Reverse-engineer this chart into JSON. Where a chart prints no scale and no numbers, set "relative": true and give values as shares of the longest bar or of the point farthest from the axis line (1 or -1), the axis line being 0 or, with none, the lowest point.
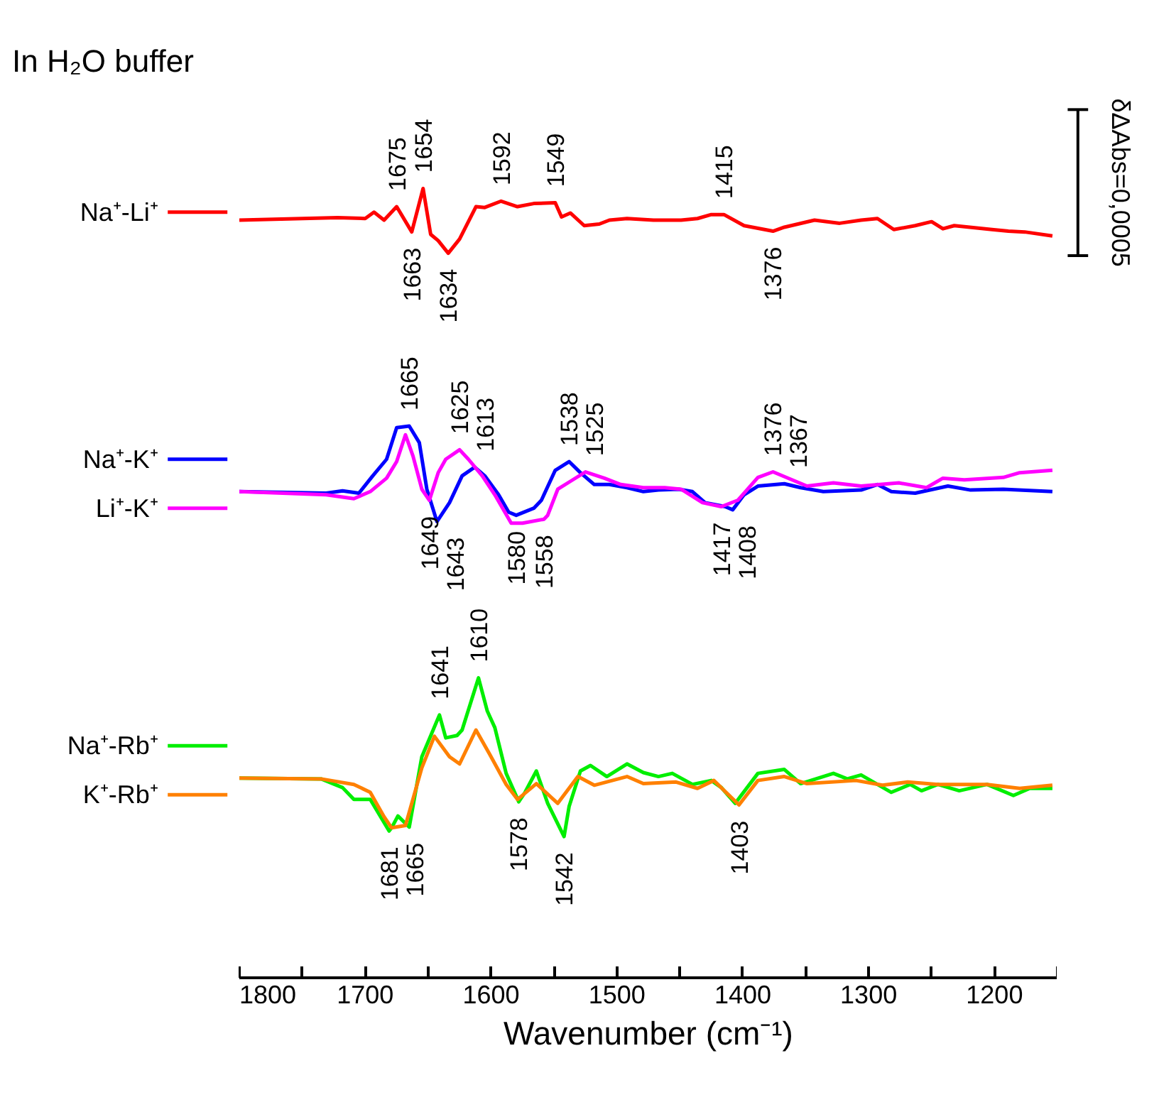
{
  "chart_data": {
    "type": "line",
    "title": "In H₂O buffer",
    "xlabel": "Wavenumber (cm⁻¹)",
    "relative": true,
    "legend": "left",
    "grid": false,
    "xlim": [
      1800,
      1150
    ],
    "xticks": [
      1800,
      {
        "value": 1750,
        "label": null
      },
      1700,
      {
        "value": 1650,
        "label": null
      },
      1600,
      {
        "value": 1550,
        "label": null
      },
      1500,
      {
        "value": 1450,
        "label": null
      },
      1400,
      {
        "value": 1350,
        "label": null
      },
      1300,
      {
        "value": 1250,
        "label": null
      },
      1200,
      {
        "value": 1150,
        "label": null
      }
    ],
    "series": [
      {
        "name": "Na⁺-Li⁺",
        "color": "#ff0000",
        "x": [
          1800,
          1722,
          1700,
          1693,
          1685,
          1675,
          1663,
          1654,
          1648,
          1642,
          1634,
          1625,
          1612,
          1605,
          1592,
          1579,
          1566,
          1549,
          1544,
          1537,
          1526,
          1514,
          1506,
          1492,
          1471,
          1449,
          1436,
          1425,
          1415,
          1399,
          1376,
          1367,
          1343,
          1323,
          1306,
          1293,
          1280,
          1263,
          1250,
          1241,
          1232,
          1202,
          1189,
          1176,
          1154
        ],
        "values": [
          0.96,
          0.963,
          0.962,
          0.97,
          0.96,
          0.977,
          0.945,
          1.0,
          0.942,
          0.934,
          0.918,
          0.936,
          0.977,
          0.976,
          0.984,
          0.977,
          0.981,
          0.982,
          0.964,
          0.969,
          0.953,
          0.955,
          0.96,
          0.962,
          0.96,
          0.96,
          0.962,
          0.967,
          0.967,
          0.953,
          0.946,
          0.951,
          0.96,
          0.956,
          0.96,
          0.962,
          0.948,
          0.953,
          0.958,
          0.949,
          0.953,
          0.948,
          0.946,
          0.945,
          0.94
        ]
      },
      {
        "name": "Na⁺-K⁺",
        "color": "#0000ff",
        "x": [
          1800,
          1731,
          1718,
          1705,
          1694,
          1683,
          1675,
          1665,
          1657,
          1651,
          1643,
          1633,
          1623,
          1613,
          1605,
          1594,
          1586,
          1580,
          1566,
          1560,
          1549,
          1538,
          1529,
          1518,
          1506,
          1492,
          1479,
          1467,
          1451,
          1440,
          1430,
          1414,
          1408,
          1399,
          1388,
          1367,
          1354,
          1336,
          1306,
          1293,
          1282,
          1263,
          1237,
          1219,
          1193,
          1154
        ],
        "values": [
          0.616,
          0.614,
          0.617,
          0.614,
          0.636,
          0.657,
          0.697,
          0.699,
          0.678,
          0.619,
          0.578,
          0.602,
          0.636,
          0.647,
          0.636,
          0.612,
          0.59,
          0.586,
          0.595,
          0.605,
          0.643,
          0.654,
          0.64,
          0.625,
          0.625,
          0.621,
          0.616,
          0.618,
          0.619,
          0.616,
          0.602,
          0.597,
          0.593,
          0.612,
          0.623,
          0.626,
          0.621,
          0.616,
          0.618,
          0.625,
          0.616,
          0.614,
          0.623,
          0.618,
          0.619,
          0.616
        ]
      },
      {
        "name": "Li⁺-K⁺",
        "color": "#ff00ff",
        "x": [
          1800,
          1731,
          1709,
          1696,
          1683,
          1675,
          1668,
          1662,
          1655,
          1649,
          1642,
          1636,
          1625,
          1618,
          1607,
          1597,
          1584,
          1575,
          1558,
          1555,
          1547,
          1536,
          1525,
          1510,
          1497,
          1479,
          1462,
          1449,
          1432,
          1417,
          1404,
          1388,
          1376,
          1349,
          1328,
          1306,
          1276,
          1254,
          1241,
          1224,
          1193,
          1180,
          1154
        ],
        "values": [
          0.616,
          0.612,
          0.607,
          0.616,
          0.633,
          0.654,
          0.688,
          0.661,
          0.619,
          0.605,
          0.64,
          0.657,
          0.669,
          0.657,
          0.636,
          0.612,
          0.576,
          0.576,
          0.581,
          0.586,
          0.619,
          0.63,
          0.641,
          0.633,
          0.625,
          0.621,
          0.621,
          0.619,
          0.602,
          0.597,
          0.605,
          0.634,
          0.641,
          0.623,
          0.627,
          0.623,
          0.627,
          0.621,
          0.633,
          0.631,
          0.634,
          0.64,
          0.643
        ]
      },
      {
        "name": "Na⁺-Rb⁺",
        "color": "#00ee00",
        "x": [
          1800,
          1735,
          1718,
          1709,
          1696,
          1681,
          1679,
          1674,
          1665,
          1655,
          1641,
          1636,
          1627,
          1623,
          1610,
          1603,
          1597,
          1588,
          1578,
          1573,
          1564,
          1555,
          1542,
          1538,
          1529,
          1521,
          1508,
          1492,
          1479,
          1467,
          1456,
          1440,
          1425,
          1417,
          1406,
          1388,
          1367,
          1354,
          1328,
          1317,
          1306,
          1282,
          1267,
          1258,
          1245,
          1228,
          1206,
          1185,
          1172,
          1154
        ],
        "values": [
          0.253,
          0.252,
          0.241,
          0.226,
          0.226,
          0.186,
          0.19,
          0.205,
          0.191,
          0.28,
          0.333,
          0.304,
          0.307,
          0.314,
          0.38,
          0.338,
          0.317,
          0.259,
          0.223,
          0.235,
          0.262,
          0.221,
          0.179,
          0.217,
          0.262,
          0.269,
          0.255,
          0.271,
          0.26,
          0.255,
          0.259,
          0.245,
          0.25,
          0.241,
          0.221,
          0.259,
          0.264,
          0.246,
          0.259,
          0.252,
          0.257,
          0.235,
          0.245,
          0.237,
          0.245,
          0.237,
          0.245,
          0.231,
          0.24,
          0.24
        ]
      },
      {
        "name": "K⁺-Rb⁺",
        "color": "#ff8000",
        "x": [
          1800,
          1735,
          1709,
          1696,
          1685,
          1679,
          1668,
          1655,
          1645,
          1633,
          1625,
          1612,
          1601,
          1588,
          1579,
          1564,
          1547,
          1531,
          1518,
          1492,
          1479,
          1453,
          1436,
          1423,
          1403,
          1388,
          1367,
          1349,
          1310,
          1289,
          1269,
          1245,
          1206,
          1180,
          1154
        ],
        "values": [
          0.253,
          0.252,
          0.245,
          0.235,
          0.204,
          0.19,
          0.193,
          0.266,
          0.306,
          0.28,
          0.271,
          0.314,
          0.283,
          0.245,
          0.226,
          0.246,
          0.221,
          0.255,
          0.244,
          0.255,
          0.246,
          0.248,
          0.24,
          0.25,
          0.219,
          0.25,
          0.255,
          0.246,
          0.25,
          0.244,
          0.248,
          0.245,
          0.245,
          0.24,
          0.244
        ]
      }
    ],
    "annotations": [
      {
        "text": "1675",
        "x": 1675,
        "y": 0.977
      },
      {
        "text": "1654",
        "x": 1654,
        "y": 1.0
      },
      {
        "text": "1592",
        "x": 1592,
        "y": 0.984
      },
      {
        "text": "1549",
        "x": 1549,
        "y": 0.982
      },
      {
        "text": "1415",
        "x": 1415,
        "y": 0.967
      },
      {
        "text": "1663",
        "x": 1663,
        "y": 0.945
      },
      {
        "text": "1634",
        "x": 1634,
        "y": 0.918
      },
      {
        "text": "1376",
        "x": 1376,
        "y": 0.946
      },
      {
        "text": "1665",
        "x": 1665,
        "y": 0.699
      },
      {
        "text": "1625",
        "x": 1625,
        "y": 0.669
      },
      {
        "text": "1613",
        "x": 1613,
        "y": 0.647
      },
      {
        "text": "1538",
        "x": 1538,
        "y": 0.654
      },
      {
        "text": "1525",
        "x": 1525,
        "y": 0.641
      },
      {
        "text": "1376",
        "x": 1376,
        "y": 0.641
      },
      {
        "text": "1367",
        "x": 1367,
        "y": 0.626
      },
      {
        "text": "1649",
        "x": 1649,
        "y": 0.605
      },
      {
        "text": "1643",
        "x": 1643,
        "y": 0.578
      },
      {
        "text": "1580",
        "x": 1580,
        "y": 0.586
      },
      {
        "text": "1558",
        "x": 1558,
        "y": 0.581
      },
      {
        "text": "1417",
        "x": 1417,
        "y": 0.597
      },
      {
        "text": "1408",
        "x": 1408,
        "y": 0.593
      },
      {
        "text": "1641",
        "x": 1641,
        "y": 0.333
      },
      {
        "text": "1610",
        "x": 1610,
        "y": 0.38
      },
      {
        "text": "1681",
        "x": 1681,
        "y": 0.186
      },
      {
        "text": "1665",
        "x": 1665,
        "y": 0.191
      },
      {
        "text": "1578",
        "x": 1578,
        "y": 0.223
      },
      {
        "text": "1542",
        "x": 1542,
        "y": 0.179
      },
      {
        "text": "1403",
        "x": 1403,
        "y": 0.219
      },
      "δΔAbs=0,0005"
    ]
  }
}
